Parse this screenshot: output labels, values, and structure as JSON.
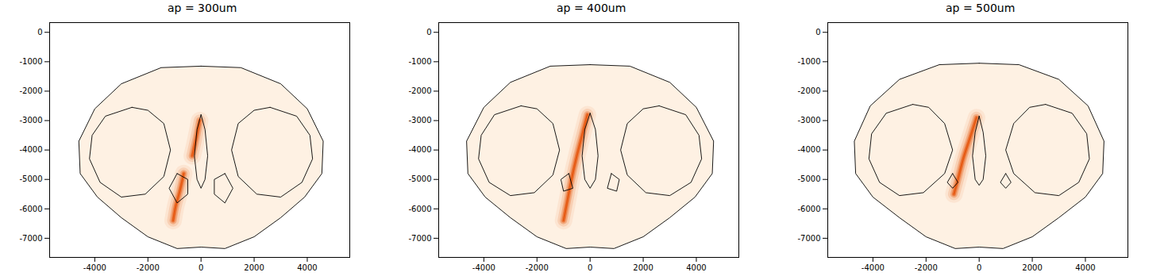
{
  "chart_data": [
    {
      "type": "heatmap",
      "title": "ap = 300um",
      "xlim": [
        -5700,
        5600
      ],
      "ylim": [
        -7650,
        330
      ],
      "xticks": [
        -4000,
        -2000,
        0,
        2000,
        4000
      ],
      "yticks": [
        0,
        -1000,
        -2000,
        -3000,
        -4000,
        -5000,
        -6000,
        -7000
      ],
      "grid": false,
      "color": "#e6550d",
      "regions": [
        [
          [
            0,
            -1150
          ],
          [
            -1500,
            -1200
          ],
          [
            -3000,
            -1750
          ],
          [
            -4000,
            -2600
          ],
          [
            -4600,
            -3700
          ],
          [
            -4550,
            -4800
          ],
          [
            -3900,
            -5600
          ],
          [
            -3000,
            -6300
          ],
          [
            -2000,
            -6950
          ],
          [
            -900,
            -7350
          ],
          [
            0,
            -7300
          ],
          [
            900,
            -7350
          ],
          [
            2000,
            -6950
          ],
          [
            3000,
            -6300
          ],
          [
            3900,
            -5600
          ],
          [
            4550,
            -4800
          ],
          [
            4600,
            -3700
          ],
          [
            4000,
            -2600
          ],
          [
            3000,
            -1750
          ],
          [
            1500,
            -1200
          ]
        ],
        [
          [
            -2600,
            -2550
          ],
          [
            -3600,
            -2850
          ],
          [
            -4100,
            -3500
          ],
          [
            -4200,
            -4300
          ],
          [
            -3800,
            -5100
          ],
          [
            -3000,
            -5600
          ],
          [
            -2100,
            -5500
          ],
          [
            -1400,
            -4900
          ],
          [
            -1150,
            -4000
          ],
          [
            -1400,
            -3100
          ],
          [
            -2000,
            -2650
          ]
        ],
        [
          [
            2600,
            -2550
          ],
          [
            3600,
            -2850
          ],
          [
            4100,
            -3500
          ],
          [
            4200,
            -4300
          ],
          [
            3800,
            -5100
          ],
          [
            3000,
            -5600
          ],
          [
            2100,
            -5500
          ],
          [
            1400,
            -4900
          ],
          [
            1150,
            -4000
          ],
          [
            1400,
            -3100
          ],
          [
            2000,
            -2650
          ]
        ],
        [
          [
            0,
            -2800
          ],
          [
            -150,
            -3300
          ],
          [
            -250,
            -4200
          ],
          [
            -150,
            -5000
          ],
          [
            0,
            -5300
          ],
          [
            150,
            -5000
          ],
          [
            250,
            -4200
          ],
          [
            150,
            -3300
          ]
        ],
        [
          [
            -900,
            -4800
          ],
          [
            -1200,
            -5300
          ],
          [
            -900,
            -5800
          ],
          [
            -500,
            -5500
          ],
          [
            -500,
            -5000
          ]
        ],
        [
          [
            900,
            -4800
          ],
          [
            1200,
            -5300
          ],
          [
            900,
            -5800
          ],
          [
            500,
            -5500
          ],
          [
            500,
            -5000
          ]
        ]
      ],
      "track": {
        "x": [
          -50,
          -180,
          -330,
          null,
          -650,
          -800,
          -950,
          -1050
        ],
        "y": [
          -3000,
          -3600,
          -4200,
          null,
          -4800,
          -5400,
          -5900,
          -6400
        ]
      }
    },
    {
      "type": "heatmap",
      "title": "ap = 400um",
      "xlim": [
        -5700,
        5600
      ],
      "ylim": [
        -7650,
        330
      ],
      "xticks": [
        -4000,
        -2000,
        0,
        2000,
        4000
      ],
      "yticks": [
        0,
        -1000,
        -2000,
        -3000,
        -4000,
        -5000,
        -6000,
        -7000
      ],
      "grid": false,
      "color": "#e6550d",
      "regions": [
        [
          [
            0,
            -1100
          ],
          [
            -1500,
            -1150
          ],
          [
            -3000,
            -1700
          ],
          [
            -4000,
            -2550
          ],
          [
            -4650,
            -3700
          ],
          [
            -4600,
            -4800
          ],
          [
            -3950,
            -5600
          ],
          [
            -3000,
            -6300
          ],
          [
            -2000,
            -6950
          ],
          [
            -900,
            -7350
          ],
          [
            0,
            -7300
          ],
          [
            900,
            -7350
          ],
          [
            2000,
            -6950
          ],
          [
            3000,
            -6300
          ],
          [
            3950,
            -5600
          ],
          [
            4600,
            -4800
          ],
          [
            4650,
            -3700
          ],
          [
            4000,
            -2550
          ],
          [
            3000,
            -1700
          ],
          [
            1500,
            -1150
          ]
        ],
        [
          [
            -2600,
            -2500
          ],
          [
            -3600,
            -2800
          ],
          [
            -4100,
            -3500
          ],
          [
            -4200,
            -4300
          ],
          [
            -3800,
            -5100
          ],
          [
            -3000,
            -5550
          ],
          [
            -2100,
            -5450
          ],
          [
            -1400,
            -4850
          ],
          [
            -1150,
            -4000
          ],
          [
            -1400,
            -3100
          ],
          [
            -2000,
            -2600
          ]
        ],
        [
          [
            2600,
            -2500
          ],
          [
            3600,
            -2800
          ],
          [
            4100,
            -3500
          ],
          [
            4200,
            -4300
          ],
          [
            3800,
            -5100
          ],
          [
            3000,
            -5550
          ],
          [
            2100,
            -5450
          ],
          [
            1400,
            -4850
          ],
          [
            1150,
            -4000
          ],
          [
            1400,
            -3100
          ],
          [
            2000,
            -2600
          ]
        ],
        [
          [
            0,
            -2750
          ],
          [
            -200,
            -3300
          ],
          [
            -300,
            -4200
          ],
          [
            -200,
            -5000
          ],
          [
            0,
            -5300
          ],
          [
            200,
            -5000
          ],
          [
            300,
            -4200
          ],
          [
            200,
            -3300
          ]
        ],
        [
          [
            -800,
            -4800
          ],
          [
            -1100,
            -5000
          ],
          [
            -1000,
            -5400
          ],
          [
            -650,
            -5300
          ]
        ],
        [
          [
            800,
            -4800
          ],
          [
            1100,
            -5000
          ],
          [
            1000,
            -5400
          ],
          [
            650,
            -5300
          ]
        ]
      ],
      "track": {
        "x": [
          -100,
          -300,
          -500,
          -700,
          -850,
          -1000
        ],
        "y": [
          -2800,
          -3500,
          -4200,
          -5000,
          -5700,
          -6400
        ]
      }
    },
    {
      "type": "heatmap",
      "title": "ap = 500um",
      "xlim": [
        -5700,
        5600
      ],
      "ylim": [
        -7650,
        330
      ],
      "xticks": [
        -4000,
        -2000,
        0,
        2000,
        4000
      ],
      "yticks": [
        0,
        -1000,
        -2000,
        -3000,
        -4000,
        -5000,
        -6000,
        -7000
      ],
      "grid": false,
      "color": "#e6550d",
      "regions": [
        [
          [
            0,
            -1050
          ],
          [
            -1500,
            -1100
          ],
          [
            -3000,
            -1600
          ],
          [
            -4100,
            -2500
          ],
          [
            -4700,
            -3700
          ],
          [
            -4650,
            -4800
          ],
          [
            -4000,
            -5600
          ],
          [
            -3000,
            -6300
          ],
          [
            -2000,
            -6950
          ],
          [
            -900,
            -7350
          ],
          [
            0,
            -7300
          ],
          [
            900,
            -7350
          ],
          [
            2000,
            -6950
          ],
          [
            3000,
            -6300
          ],
          [
            4000,
            -5600
          ],
          [
            4650,
            -4800
          ],
          [
            4700,
            -3700
          ],
          [
            4100,
            -2500
          ],
          [
            3000,
            -1600
          ],
          [
            1500,
            -1100
          ]
        ],
        [
          [
            -2500,
            -2450
          ],
          [
            -3500,
            -2750
          ],
          [
            -4050,
            -3450
          ],
          [
            -4150,
            -4300
          ],
          [
            -3750,
            -5100
          ],
          [
            -3000,
            -5550
          ],
          [
            -2100,
            -5450
          ],
          [
            -1300,
            -4800
          ],
          [
            -1000,
            -4000
          ],
          [
            -1300,
            -3100
          ],
          [
            -1900,
            -2550
          ]
        ],
        [
          [
            2500,
            -2450
          ],
          [
            3500,
            -2750
          ],
          [
            4050,
            -3450
          ],
          [
            4150,
            -4300
          ],
          [
            3750,
            -5100
          ],
          [
            3000,
            -5550
          ],
          [
            2100,
            -5450
          ],
          [
            1300,
            -4800
          ],
          [
            1000,
            -4000
          ],
          [
            1300,
            -3100
          ],
          [
            1900,
            -2550
          ]
        ],
        [
          [
            0,
            -2850
          ],
          [
            -150,
            -3400
          ],
          [
            -250,
            -4200
          ],
          [
            -150,
            -5000
          ],
          [
            0,
            -5200
          ],
          [
            150,
            -5000
          ],
          [
            250,
            -4200
          ],
          [
            150,
            -3400
          ]
        ],
        [
          [
            -1000,
            -4800
          ],
          [
            -1200,
            -5100
          ],
          [
            -1000,
            -5300
          ],
          [
            -800,
            -5100
          ]
        ],
        [
          [
            1000,
            -4800
          ],
          [
            1200,
            -5100
          ],
          [
            1000,
            -5300
          ],
          [
            800,
            -5100
          ]
        ]
      ],
      "track": {
        "x": [
          -100,
          -350,
          -600,
          -800,
          -950
        ],
        "y": [
          -2900,
          -3600,
          -4300,
          -5000,
          -5500
        ]
      }
    }
  ]
}
